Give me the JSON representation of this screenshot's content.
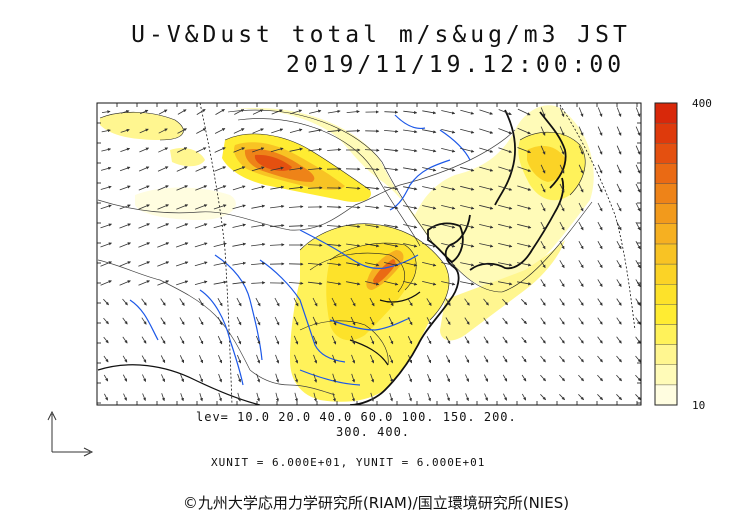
{
  "title": "U-V&Dust total m/s&ug/m3 JST",
  "timestamp": "2019/11/19.12:00:00",
  "levels_line1": "lev= 10.0 20.0 40.0 60.0 100. 150. 200.",
  "levels_line2": "300. 400.",
  "units_line": "XUNIT = 6.000E+01, YUNIT = 6.000E+01",
  "credit": "©九州大学応用力学研究所(RIAM)/国立環境研究所(NIES)",
  "colorbar": {
    "max_label": "400",
    "min_label": "10",
    "colors": [
      "#fffde0",
      "#fffbb8",
      "#fff690",
      "#fff25a",
      "#ffec32",
      "#fde22a",
      "#fbd326",
      "#f8c324",
      "#f6b021",
      "#f29a1c",
      "#ee8318",
      "#ea6a14",
      "#e45010",
      "#de3a0c",
      "#d8280a"
    ]
  },
  "colors": {
    "land_border": "#111111",
    "river": "#1c58e8",
    "arrow": "#333333"
  }
}
